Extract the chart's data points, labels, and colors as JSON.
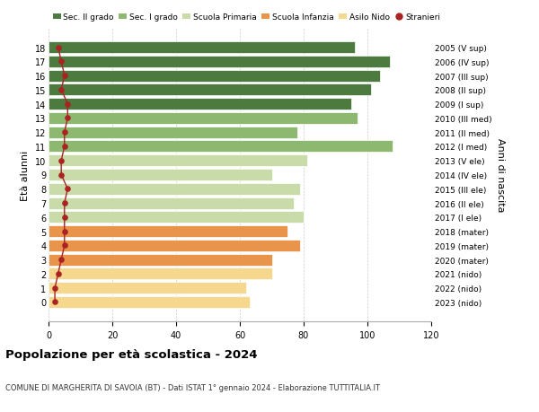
{
  "ages": [
    0,
    1,
    2,
    3,
    4,
    5,
    6,
    7,
    8,
    9,
    10,
    11,
    12,
    13,
    14,
    15,
    16,
    17,
    18
  ],
  "bar_values": [
    63,
    62,
    70,
    70,
    79,
    75,
    80,
    77,
    79,
    70,
    81,
    108,
    78,
    97,
    95,
    101,
    104,
    107,
    96
  ],
  "stranieri": [
    2,
    2,
    3,
    4,
    5,
    5,
    5,
    5,
    6,
    4,
    4,
    5,
    5,
    6,
    6,
    4,
    5,
    4,
    3
  ],
  "right_labels": [
    "2023 (nido)",
    "2022 (nido)",
    "2021 (nido)",
    "2020 (mater)",
    "2019 (mater)",
    "2018 (mater)",
    "2017 (I ele)",
    "2016 (II ele)",
    "2015 (III ele)",
    "2014 (IV ele)",
    "2013 (V ele)",
    "2012 (I med)",
    "2011 (II med)",
    "2010 (III med)",
    "2009 (I sup)",
    "2008 (II sup)",
    "2007 (III sup)",
    "2006 (IV sup)",
    "2005 (V sup)"
  ],
  "bar_colors": [
    "#f5d78e",
    "#f5d78e",
    "#f5d78e",
    "#e8944a",
    "#e8944a",
    "#e8944a",
    "#c8dba8",
    "#c8dba8",
    "#c8dba8",
    "#c8dba8",
    "#c8dba8",
    "#8db870",
    "#8db870",
    "#8db870",
    "#4d7a3e",
    "#4d7a3e",
    "#4d7a3e",
    "#4d7a3e",
    "#4d7a3e"
  ],
  "legend_labels": [
    "Sec. II grado",
    "Sec. I grado",
    "Scuola Primaria",
    "Scuola Infanzia",
    "Asilo Nido",
    "Stranieri"
  ],
  "legend_colors": [
    "#4d7a3e",
    "#8db870",
    "#c8dba8",
    "#e8944a",
    "#f5d78e",
    "#aa2222"
  ],
  "stranieri_color": "#aa2222",
  "stranieri_line_color": "#aa2222",
  "title": "Popolazione per età scolastica - 2024",
  "subtitle": "COMUNE DI MARGHERITA DI SAVOIA (BT) - Dati ISTAT 1° gennaio 2024 - Elaborazione TUTTITALIA.IT",
  "ylabel": "Età alunni",
  "right_ylabel": "Anni di nascita",
  "xlim": [
    0,
    120
  ],
  "xticks": [
    0,
    20,
    40,
    60,
    80,
    100,
    120
  ],
  "bg_color": "#ffffff",
  "bar_edge_color": "#ffffff",
  "grid_color": "#cccccc"
}
